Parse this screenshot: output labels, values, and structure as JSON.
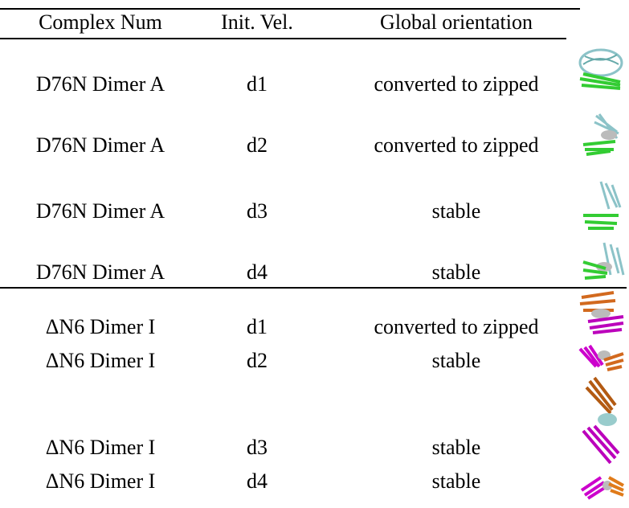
{
  "table": {
    "header": [
      "Complex Num",
      "Init. Vel.",
      "Global orientation"
    ],
    "rows": [
      [
        "D76N Dimer A",
        "d1",
        "converted to zipped"
      ],
      [
        "D76N Dimer A",
        "d2",
        "converted to zipped"
      ],
      [
        "D76N Dimer A",
        "d3",
        "stable"
      ],
      [
        "D76N Dimer A",
        "d4",
        "stable"
      ],
      [
        "ΔN6 Dimer I",
        "d1",
        "converted to zipped"
      ],
      [
        "ΔN6 Dimer I",
        "d2",
        "stable"
      ],
      [
        "ΔN6 Dimer I",
        "d3",
        "stable"
      ],
      [
        "ΔN6 Dimer I",
        "d4",
        "stable"
      ]
    ]
  }
}
